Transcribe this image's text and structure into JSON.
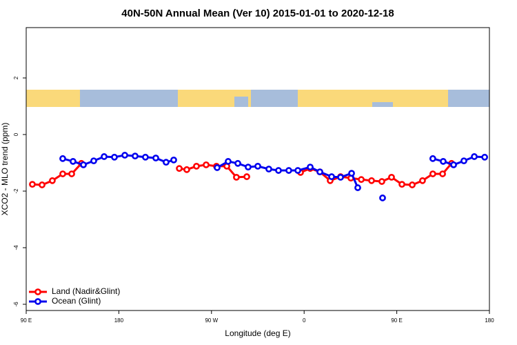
{
  "chart_data": {
    "type": "line",
    "title": "40N-50N Annual Mean (Ver 10)   2015-01-01 to 2020-12-18",
    "xlabel": "Longitude (deg E)",
    "ylabel": "XCO2 - MLO trend (ppm)",
    "xlim": [
      90,
      540
    ],
    "ylim": [
      -6.22,
      3.78
    ],
    "xticks": [
      {
        "value": 90,
        "label": "90 E"
      },
      180,
      {
        "value": 270,
        "label": "90 W"
      },
      {
        "value": 360,
        "label": "0"
      },
      {
        "value": 450,
        "label": "90 E"
      },
      {
        "value": 540,
        "label": "180"
      }
    ],
    "yticks": [
      -6,
      -4,
      -2,
      0,
      2
    ],
    "legend": "bottom-left",
    "series": [
      {
        "name": "Land (Nadir&Glint)",
        "color": "#ff0000",
        "x": [
          96,
          105.4,
          115.4,
          125.5,
          134.2,
          143.6,
          null,
          238.7,
          246,
          255.4,
          264.8,
          274.8,
          284.9,
          294.2,
          304.3,
          null,
          356.5,
          365.9,
          375.3,
          385.3,
          395.4,
          405.4,
          415.5,
          425.5,
          435.5,
          444.9,
          455,
          465,
          475,
          485,
          494.5,
          503.2
        ],
        "values": [
          -1.76,
          -1.78,
          -1.63,
          -1.39,
          -1.39,
          -1.02,
          null,
          -1.2,
          -1.24,
          -1.12,
          -1.07,
          -1.12,
          -1.12,
          -1.51,
          -1.49,
          null,
          -1.34,
          -1.2,
          -1.32,
          -1.63,
          -1.49,
          -1.54,
          -1.59,
          -1.63,
          -1.66,
          -1.51,
          -1.76,
          -1.78,
          -1.63,
          -1.39,
          -1.39,
          -1.02
        ]
      },
      {
        "name": "Ocean (Glint)",
        "color": "#0000ee",
        "x": [
          125.5,
          135.5,
          145.6,
          155.6,
          165.7,
          175.7,
          185.8,
          195.8,
          205.8,
          215.9,
          225.9,
          233.3,
          null,
          275.5,
          286.2,
          295.6,
          305.6,
          315,
          325.7,
          335.1,
          345.1,
          353.9,
          365.9,
          375.3,
          386.7,
          395.4,
          406.1,
          412.1,
          null,
          436.2,
          null,
          485,
          495.1,
          505.2,
          515.2,
          525.3,
          535.4
        ],
        "values": [
          -0.85,
          -0.95,
          -1.07,
          -0.93,
          -0.78,
          -0.8,
          -0.73,
          -0.76,
          -0.8,
          -0.83,
          -0.98,
          -0.9,
          null,
          -1.17,
          -0.95,
          -1.02,
          -1.15,
          -1.12,
          -1.22,
          -1.27,
          -1.27,
          -1.27,
          -1.15,
          -1.32,
          -1.49,
          -1.51,
          -1.37,
          -1.88,
          null,
          -2.24,
          null,
          -0.85,
          -0.95,
          -1.07,
          -0.93,
          -0.78,
          -0.8
        ]
      }
    ]
  }
}
